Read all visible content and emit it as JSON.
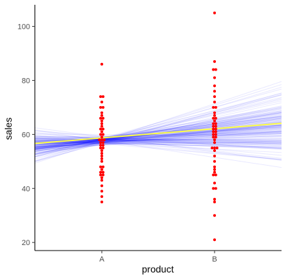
{
  "chart_data": {
    "type": "scatter",
    "xlabel": "product",
    "ylabel": "sales",
    "categories": [
      "A",
      "B"
    ],
    "ylim": [
      17,
      108
    ],
    "yticks": [
      20,
      40,
      60,
      80,
      100
    ],
    "grid": false,
    "legend": "none",
    "colors": {
      "points": "#ff0000",
      "fit_line": "#ffff44",
      "posterior_lines": "#0000ff",
      "axis": "#000000"
    },
    "fit_line": {
      "A": 58.7,
      "B": 62.1
    },
    "posterior_lines": {
      "count": 150,
      "intercept_A_range": [
        55.5,
        60.0
      ],
      "slope_range": [
        -6,
        15
      ]
    },
    "series": [
      {
        "category": "A",
        "values": [
          86,
          74,
          74,
          72,
          70,
          70,
          68,
          67,
          66,
          66,
          65,
          64,
          63,
          62,
          62,
          61,
          60,
          60,
          59,
          58,
          58,
          58,
          57,
          57,
          56,
          56,
          55,
          55,
          54,
          53,
          52,
          51,
          50,
          48,
          48,
          47,
          46,
          46,
          45,
          45,
          44,
          43,
          41,
          39,
          37,
          35
        ]
      },
      {
        "category": "B",
        "values": [
          105,
          87,
          84,
          84,
          81,
          78,
          76,
          74,
          72,
          70,
          70,
          68,
          67,
          66,
          66,
          65,
          64,
          64,
          63,
          63,
          62,
          62,
          61,
          61,
          60,
          60,
          59,
          59,
          58,
          57,
          55,
          55,
          55,
          54,
          52,
          50,
          48,
          47,
          46,
          45,
          45,
          42,
          40,
          40,
          36,
          35,
          30,
          21
        ]
      }
    ]
  }
}
